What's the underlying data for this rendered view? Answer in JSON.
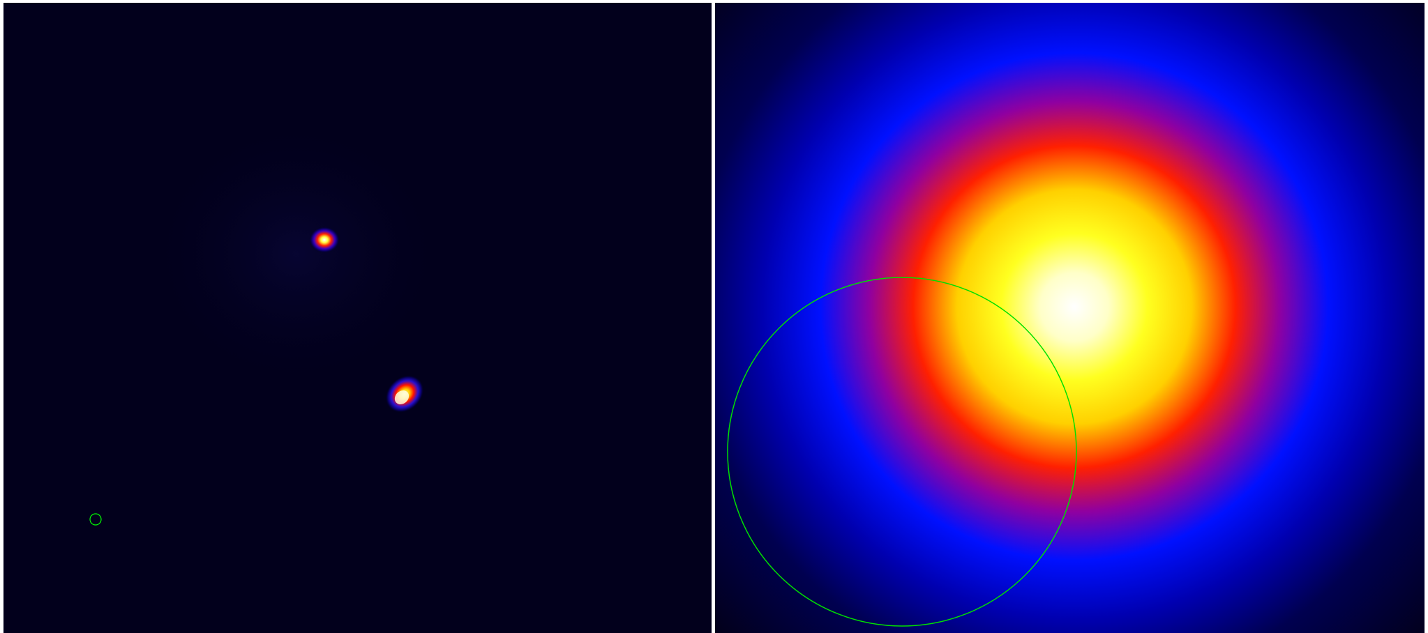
{
  "colormap": {
    "name": "heat-blue-red-yellow-white",
    "stops": [
      "#03001e",
      "#0000ff",
      "#ff0000",
      "#ffff00",
      "#ffffff"
    ]
  },
  "left_panel": {
    "kind": "sky-image",
    "background_color": "#02001c",
    "sources": [
      "bright-compact-source-upper",
      "bright-compact-source-lower"
    ],
    "region_marker": {
      "shape": "circle",
      "color": "#00ff00"
    }
  },
  "right_panel": {
    "kind": "sky-image-zoom",
    "background_color": "#020020",
    "sources": [
      "extended-diffuse-source"
    ],
    "region_marker": {
      "shape": "circle",
      "color": "#00ff00"
    }
  },
  "separator_color": "#ffffff"
}
